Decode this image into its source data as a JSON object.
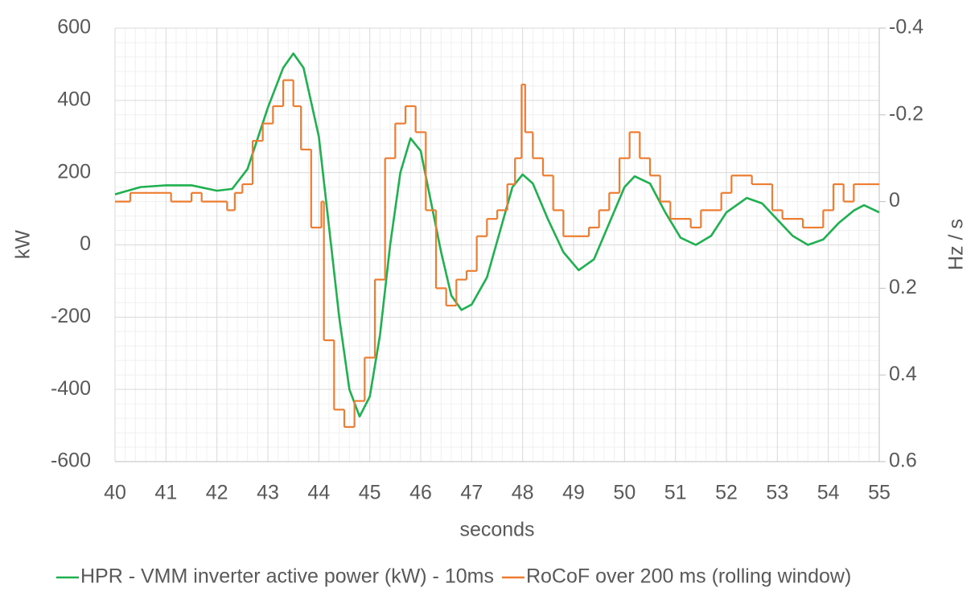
{
  "chart_data": {
    "type": "line",
    "x_label": "seconds",
    "y_label": "kW",
    "y2_label": "Hz / s",
    "xlim": [
      40,
      55
    ],
    "xticks": [
      40,
      41,
      42,
      43,
      44,
      45,
      46,
      47,
      48,
      49,
      50,
      51,
      52,
      53,
      54,
      55
    ],
    "ylim": [
      -600,
      600
    ],
    "yticks": [
      -600,
      -400,
      -200,
      0,
      200,
      400,
      600
    ],
    "y2lim": [
      -0.4,
      0.6
    ],
    "y2ticks": [
      -0.4,
      -0.2,
      0,
      0.2,
      0.4,
      0.6
    ],
    "y2_reversed": true,
    "grid": true,
    "minor_grid": true,
    "legend": "bottom",
    "series": [
      {
        "name": "HPR - VMM inverter active power (kW) - 10ms",
        "color": "#1fb04f",
        "style": "line",
        "x": [
          40,
          40.5,
          41,
          41.5,
          42,
          42.3,
          42.6,
          43,
          43.3,
          43.5,
          43.7,
          44,
          44.2,
          44.4,
          44.6,
          44.8,
          45,
          45.2,
          45.4,
          45.6,
          45.8,
          46,
          46.2,
          46.4,
          46.6,
          46.8,
          47,
          47.3,
          47.6,
          47.8,
          48,
          48.2,
          48.5,
          48.8,
          49.1,
          49.4,
          49.7,
          50,
          50.2,
          50.5,
          50.8,
          51.1,
          51.4,
          51.7,
          52,
          52.4,
          52.7,
          53,
          53.3,
          53.6,
          53.9,
          54.2,
          54.5,
          54.7,
          55
        ],
        "values": [
          140,
          160,
          165,
          165,
          150,
          155,
          210,
          380,
          490,
          530,
          490,
          300,
          50,
          -200,
          -400,
          -475,
          -420,
          -250,
          0,
          200,
          295,
          260,
          120,
          -20,
          -140,
          -180,
          -165,
          -90,
          60,
          160,
          195,
          170,
          70,
          -20,
          -70,
          -40,
          60,
          160,
          190,
          170,
          90,
          20,
          0,
          25,
          90,
          130,
          115,
          70,
          25,
          0,
          15,
          60,
          95,
          110,
          90
        ]
      },
      {
        "name": "RoCoF over 200 ms (rolling window)",
        "color": "#ed7d31",
        "style": "step",
        "axis": "y2",
        "x": [
          40,
          40.3,
          41.1,
          41.5,
          41.7,
          42.2,
          42.35,
          42.5,
          42.7,
          42.9,
          43.1,
          43.3,
          43.5,
          43.65,
          43.85,
          44.05,
          44.1,
          44.3,
          44.5,
          44.7,
          44.9,
          45.1,
          45.3,
          45.5,
          45.7,
          45.9,
          46.1,
          46.3,
          46.5,
          46.7,
          46.9,
          47.1,
          47.3,
          47.5,
          47.7,
          47.85,
          47.98,
          48.05,
          48.2,
          48.4,
          48.6,
          48.8,
          49.3,
          49.5,
          49.7,
          49.9,
          50.1,
          50.3,
          50.5,
          50.7,
          50.9,
          51.3,
          51.5,
          51.9,
          52.1,
          52.5,
          52.9,
          53.1,
          53.5,
          53.9,
          54.1,
          54.3,
          54.5
        ],
        "values": [
          0,
          -0.02,
          0,
          -0.02,
          0,
          0.02,
          -0.02,
          -0.04,
          -0.14,
          -0.18,
          -0.22,
          -0.28,
          -0.22,
          -0.12,
          0.06,
          0,
          0.32,
          0.48,
          0.52,
          0.46,
          0.36,
          0.18,
          -0.1,
          -0.18,
          -0.22,
          -0.16,
          0.02,
          0.2,
          0.24,
          0.18,
          0.16,
          0.08,
          0.04,
          0.02,
          -0.04,
          -0.1,
          -0.27,
          -0.16,
          -0.1,
          -0.06,
          0.02,
          0.08,
          0.06,
          0.02,
          -0.02,
          -0.1,
          -0.16,
          -0.1,
          -0.06,
          0,
          0.04,
          0.06,
          0.02,
          -0.02,
          -0.06,
          -0.04,
          0.02,
          0.04,
          0.06,
          0.02,
          -0.04,
          0,
          -0.04
        ]
      }
    ]
  }
}
